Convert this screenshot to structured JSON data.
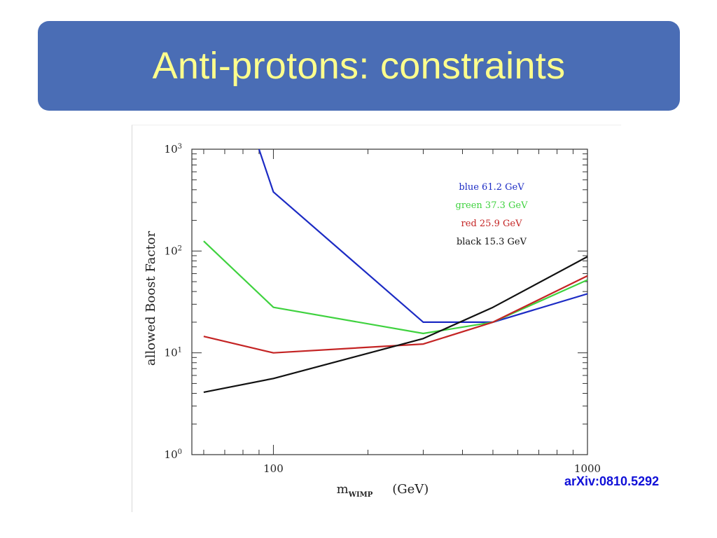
{
  "slide": {
    "title": "Anti-protons: constraints",
    "reference": "arXiv:0810.5292",
    "colors": {
      "title_bar": "#4a6db5",
      "title_text": "#ffff8c",
      "reference": "#1010d8"
    }
  },
  "chart_data": {
    "type": "line",
    "title": "",
    "xlabel_main": "m",
    "xlabel_sub": "WIMP",
    "xlabel_unit": "(GeV)",
    "ylabel": "allowed Boost Factor",
    "xscale": "log",
    "yscale": "log",
    "xlim": [
      55,
      1000
    ],
    "ylim": [
      1,
      1000
    ],
    "x_ticks": [
      {
        "value": 100,
        "label": "100"
      },
      {
        "value": 1000,
        "label": "1000"
      }
    ],
    "y_ticks": [
      {
        "value": 1,
        "label_base": "10",
        "label_exp": "0"
      },
      {
        "value": 10,
        "label_base": "10",
        "label_exp": "1"
      },
      {
        "value": 100,
        "label_base": "10",
        "label_exp": "2"
      },
      {
        "value": 1000,
        "label_base": "10",
        "label_exp": "3"
      }
    ],
    "legend_position": "top-right",
    "series": [
      {
        "name": "blue 61.2 GeV",
        "color": "#1c2bc4",
        "x": [
          90,
          100,
          300,
          500,
          1000
        ],
        "y": [
          1000,
          380,
          20,
          20,
          38
        ]
      },
      {
        "name": "green 37.3 GeV",
        "color": "#3fd23f",
        "x": [
          60,
          100,
          300,
          500,
          1000
        ],
        "y": [
          125,
          28,
          15.5,
          20,
          52
        ]
      },
      {
        "name": "red 25.9 GeV",
        "color": "#c42424",
        "x": [
          60,
          100,
          300,
          500,
          1000
        ],
        "y": [
          14.5,
          10,
          12.2,
          20,
          57
        ]
      },
      {
        "name": "black 15.3 GeV",
        "color": "#111111",
        "x": [
          60,
          100,
          300,
          500,
          1000
        ],
        "y": [
          4.1,
          5.6,
          13.8,
          28,
          88
        ]
      }
    ]
  }
}
